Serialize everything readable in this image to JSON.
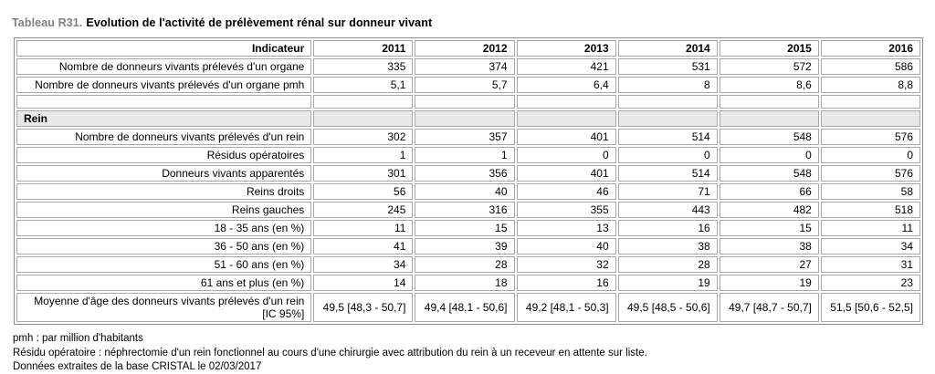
{
  "title": {
    "prefix": "Tableau R31.",
    "text": "Evolution de l'activité de prélèvement rénal sur donneur vivant"
  },
  "colors": {
    "title_prefix_gray": "#808080",
    "section_row_bg": "#e8e8e8",
    "grid_border": "#a9a9a9"
  },
  "table": {
    "header": {
      "indicator": "Indicateur",
      "years": [
        "2011",
        "2012",
        "2013",
        "2014",
        "2015",
        "2016"
      ]
    },
    "rows": [
      {
        "type": "data",
        "label": "Nombre de donneurs vivants prélevés d'un organe",
        "values": [
          "335",
          "374",
          "421",
          "531",
          "572",
          "586"
        ]
      },
      {
        "type": "data",
        "label": "Nombre de donneurs vivants prélevés d'un organe pmh",
        "values": [
          "5,1",
          "5,7",
          "6,4",
          "8",
          "8,6",
          "8,8"
        ]
      },
      {
        "type": "spacer"
      },
      {
        "type": "section",
        "label": "Rein"
      },
      {
        "type": "data",
        "label": "Nombre de donneurs vivants prélevés d'un rein",
        "values": [
          "302",
          "357",
          "401",
          "514",
          "548",
          "576"
        ]
      },
      {
        "type": "data",
        "label": "Résidus opératoires",
        "values": [
          "1",
          "1",
          "0",
          "0",
          "0",
          "0"
        ]
      },
      {
        "type": "data",
        "label": "Donneurs vivants apparentés",
        "values": [
          "301",
          "356",
          "401",
          "514",
          "548",
          "576"
        ]
      },
      {
        "type": "data",
        "label": "Reins droits",
        "values": [
          "56",
          "40",
          "46",
          "71",
          "66",
          "58"
        ]
      },
      {
        "type": "data",
        "label": "Reins gauches",
        "values": [
          "245",
          "316",
          "355",
          "443",
          "482",
          "518"
        ]
      },
      {
        "type": "data",
        "label": "18 - 35 ans (en %)",
        "values": [
          "11",
          "15",
          "13",
          "16",
          "15",
          "11"
        ]
      },
      {
        "type": "data",
        "label": "36 - 50 ans (en %)",
        "values": [
          "41",
          "39",
          "40",
          "38",
          "38",
          "34"
        ]
      },
      {
        "type": "data",
        "label": "51 - 60 ans (en %)",
        "values": [
          "34",
          "28",
          "32",
          "28",
          "27",
          "31"
        ]
      },
      {
        "type": "data",
        "label": "61 ans et plus (en %)",
        "values": [
          "14",
          "18",
          "16",
          "19",
          "19",
          "23"
        ]
      },
      {
        "type": "data",
        "label": "Moyenne d'âge des donneurs vivants prélevés d'un rein [IC 95%]",
        "values": [
          "49,5 [48,3 - 50,7]",
          "49,4 [48,1 - 50,6]",
          "49,2 [48,1 - 50,3]",
          "49,5 [48,5 - 50,6]",
          "49,7 [48,7 - 50,7]",
          "51,5 [50,6 - 52,5]"
        ]
      }
    ]
  },
  "footnotes": [
    "pmh : par million d'habitants",
    "Résidu opératoire : néphrectomie d'un rein fonctionnel au cours d'une chirurgie avec attribution du rein à un receveur en attente sur liste.",
    "Données extraites de la base CRISTAL le 02/03/2017"
  ]
}
